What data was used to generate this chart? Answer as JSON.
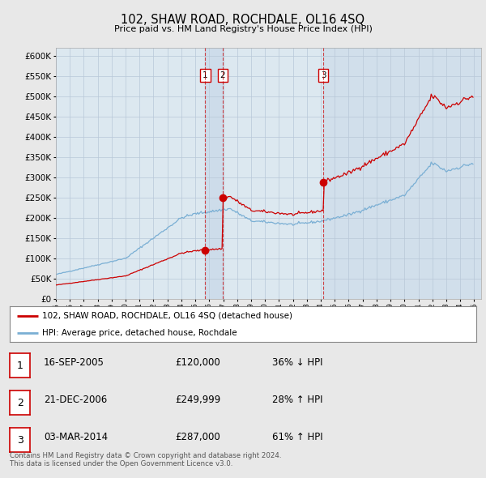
{
  "title": "102, SHAW ROAD, ROCHDALE, OL16 4SQ",
  "subtitle": "Price paid vs. HM Land Registry's House Price Index (HPI)",
  "ylim": [
    0,
    620000
  ],
  "ylabel_ticks": [
    0,
    50000,
    100000,
    150000,
    200000,
    250000,
    300000,
    350000,
    400000,
    450000,
    500000,
    550000,
    600000
  ],
  "xlim_start": 1995.0,
  "xlim_end": 2025.5,
  "bg_color": "#e8e8e8",
  "plot_bg_color": "#dce8f0",
  "grid_color": "#b8c8d8",
  "red_color": "#cc0000",
  "blue_color": "#7aafd4",
  "vband_color": "#c8d8e8",
  "sale_events": [
    {
      "num": 1,
      "x": 2005.71,
      "price": 120000,
      "date": "16-SEP-2005",
      "label": "36% ↓ HPI"
    },
    {
      "num": 2,
      "x": 2006.97,
      "price": 249999,
      "date": "21-DEC-2006",
      "label": "28% ↑ HPI"
    },
    {
      "num": 3,
      "x": 2014.17,
      "price": 287000,
      "date": "03-MAR-2014",
      "label": "61% ↑ HPI"
    }
  ],
  "legend_label_red": "102, SHAW ROAD, ROCHDALE, OL16 4SQ (detached house)",
  "legend_label_blue": "HPI: Average price, detached house, Rochdale",
  "footer": "Contains HM Land Registry data © Crown copyright and database right 2024.\nThis data is licensed under the Open Government Licence v3.0."
}
